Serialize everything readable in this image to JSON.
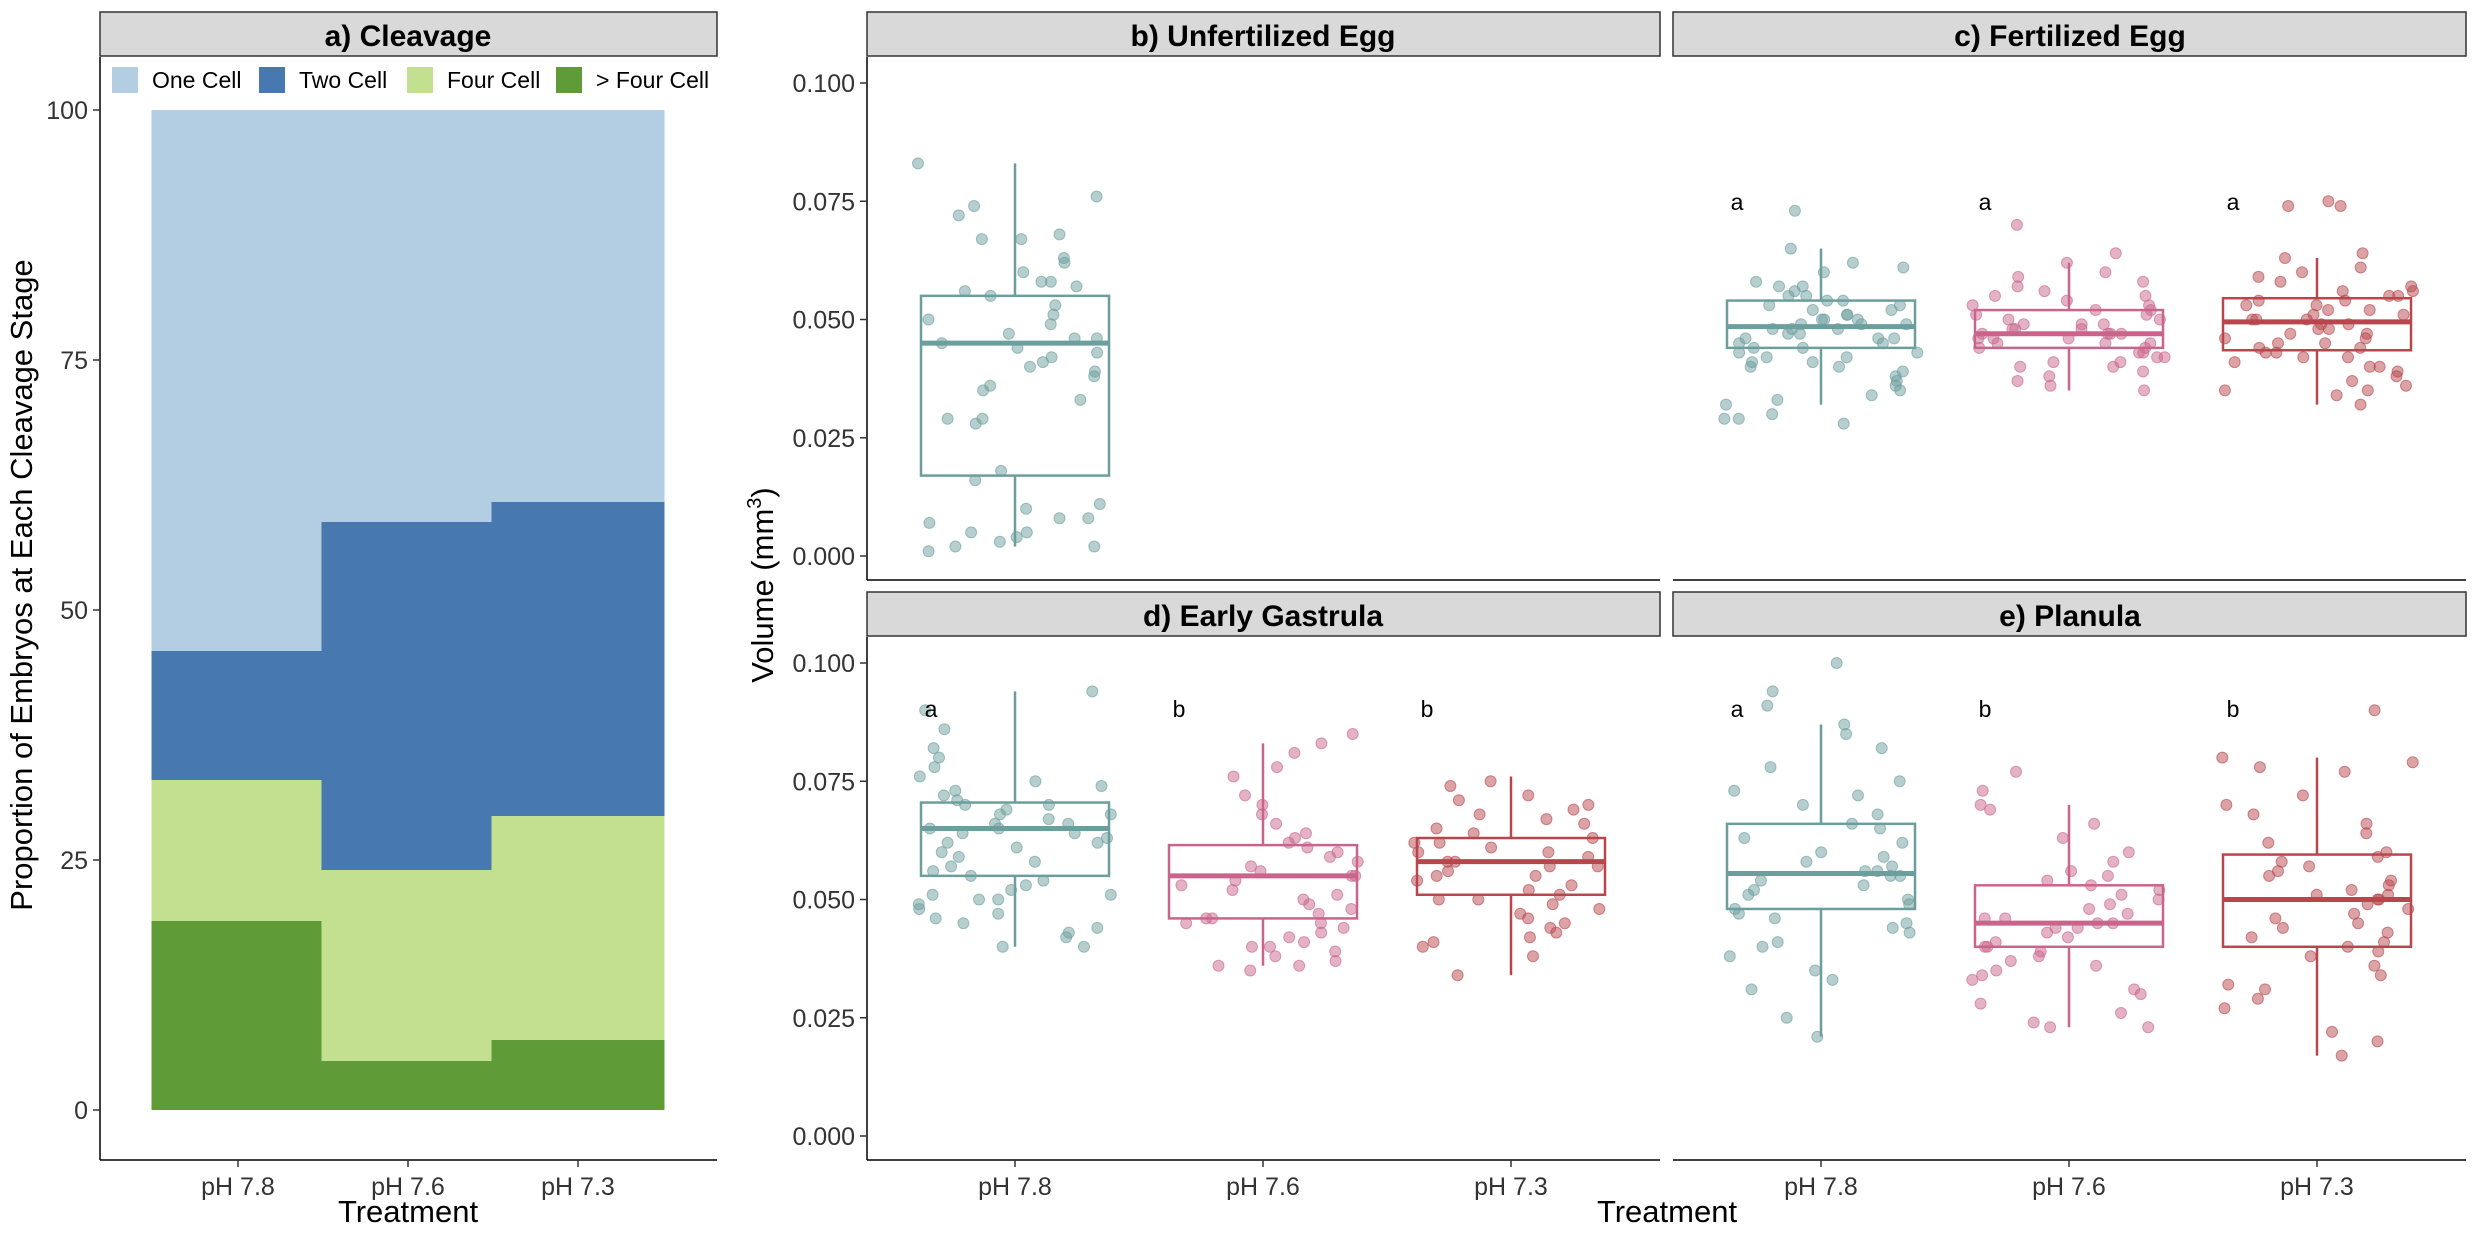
{
  "chart_data": [
    {
      "panel": "a",
      "type": "bar",
      "stacked": true,
      "title": "a) Cleavage",
      "xlabel": "Treatment",
      "ylabel": "Proportion of Embryos at Each Cleavage Stage",
      "categories": [
        "pH 7.8",
        "pH 7.6",
        "pH 7.3"
      ],
      "ylim": [
        0,
        100
      ],
      "yticks": [
        "0",
        "25",
        "50",
        "75",
        "100"
      ],
      "legend_position": "top",
      "series": [
        {
          "name": "One Cell",
          "color": "#b3cde3",
          "values": [
            54.1,
            41.2,
            39.2
          ]
        },
        {
          "name": "Two Cell",
          "color": "#4878b0",
          "values": [
            12.9,
            34.8,
            31.4
          ]
        },
        {
          "name": "Four Cell",
          "color": "#c2e08f",
          "values": [
            14.1,
            19.1,
            22.4
          ]
        },
        {
          "name": "> Four Cell",
          "color": "#5f9c37",
          "values": [
            18.9,
            4.9,
            7.0
          ]
        }
      ]
    },
    {
      "panel": "b",
      "type": "scatter",
      "subtype": "boxplot with jittered points",
      "title": "b) Unfertilized Egg",
      "categories": [
        "pH 7.8"
      ],
      "ylim": [
        0,
        0.1
      ],
      "boxes": [
        {
          "category": "pH 7.8",
          "color": "#6d9e9e",
          "q1": 0.017,
          "median": 0.045,
          "q3": 0.055,
          "whisker_low": 0.002,
          "whisker_high": 0.083
        }
      ],
      "points": [
        [
          0.083,
          0.076,
          0.074,
          0.072,
          0.068,
          0.067,
          0.067,
          0.063,
          0.062,
          0.06,
          0.058,
          0.058,
          0.057,
          0.056,
          0.055,
          0.053,
          0.051,
          0.05,
          0.049,
          0.047,
          0.046,
          0.046,
          0.045,
          0.044,
          0.043,
          0.042,
          0.041,
          0.04,
          0.039,
          0.038,
          0.036,
          0.035,
          0.033,
          0.029,
          0.029,
          0.028,
          0.018,
          0.016,
          0.011,
          0.01,
          0.008,
          0.008,
          0.007,
          0.005,
          0.005,
          0.004,
          0.003,
          0.002,
          0.002,
          0.001
        ]
      ],
      "significance": []
    },
    {
      "panel": "c",
      "type": "scatter",
      "subtype": "boxplot with jittered points",
      "title": "c) Fertilized Egg",
      "categories": [
        "pH 7.8",
        "pH 7.6",
        "pH 7.3"
      ],
      "ylim": [
        0,
        0.1
      ],
      "boxes": [
        {
          "category": "pH 7.8",
          "color": "#6d9e9e",
          "q1": 0.044,
          "median": 0.0485,
          "q3": 0.054,
          "whisker_low": 0.032,
          "whisker_high": 0.065
        },
        {
          "category": "pH 7.6",
          "color": "#c9658c",
          "q1": 0.044,
          "median": 0.047,
          "q3": 0.052,
          "whisker_low": 0.035,
          "whisker_high": 0.062
        },
        {
          "category": "pH 7.3",
          "color": "#b8474d",
          "q1": 0.0435,
          "median": 0.0495,
          "q3": 0.0545,
          "whisker_low": 0.032,
          "whisker_high": 0.063
        }
      ],
      "points": [
        [
          0.073,
          0.065,
          0.062,
          0.061,
          0.06,
          0.058,
          0.057,
          0.057,
          0.056,
          0.055,
          0.055,
          0.054,
          0.054,
          0.053,
          0.053,
          0.052,
          0.052,
          0.051,
          0.051,
          0.05,
          0.05,
          0.05,
          0.049,
          0.049,
          0.049,
          0.048,
          0.048,
          0.048,
          0.047,
          0.047,
          0.046,
          0.046,
          0.046,
          0.045,
          0.045,
          0.044,
          0.044,
          0.043,
          0.043,
          0.042,
          0.042,
          0.041,
          0.041,
          0.04,
          0.04,
          0.039,
          0.038,
          0.037,
          0.036,
          0.035,
          0.034,
          0.033,
          0.032,
          0.03,
          0.029,
          0.029,
          0.028
        ],
        [
          0.07,
          0.064,
          0.062,
          0.06,
          0.059,
          0.058,
          0.057,
          0.056,
          0.055,
          0.055,
          0.054,
          0.053,
          0.053,
          0.052,
          0.052,
          0.051,
          0.051,
          0.05,
          0.05,
          0.049,
          0.049,
          0.049,
          0.048,
          0.048,
          0.048,
          0.047,
          0.047,
          0.047,
          0.047,
          0.046,
          0.046,
          0.046,
          0.045,
          0.045,
          0.045,
          0.044,
          0.044,
          0.043,
          0.043,
          0.042,
          0.042,
          0.041,
          0.041,
          0.04,
          0.04,
          0.039,
          0.038,
          0.037,
          0.036,
          0.035
        ],
        [
          0.075,
          0.074,
          0.074,
          0.064,
          0.063,
          0.061,
          0.06,
          0.059,
          0.058,
          0.057,
          0.056,
          0.056,
          0.055,
          0.055,
          0.054,
          0.054,
          0.053,
          0.053,
          0.052,
          0.052,
          0.051,
          0.051,
          0.05,
          0.05,
          0.05,
          0.049,
          0.049,
          0.048,
          0.048,
          0.047,
          0.047,
          0.046,
          0.046,
          0.045,
          0.045,
          0.044,
          0.044,
          0.043,
          0.043,
          0.042,
          0.042,
          0.041,
          0.04,
          0.04,
          0.039,
          0.038,
          0.037,
          0.036,
          0.035,
          0.035,
          0.034,
          0.032
        ]
      ],
      "significance": [
        "a",
        "a",
        "a"
      ]
    },
    {
      "panel": "d",
      "type": "scatter",
      "subtype": "boxplot with jittered points",
      "title": "d) Early Gastrula",
      "categories": [
        "pH 7.8",
        "pH 7.6",
        "pH 7.3"
      ],
      "ylim": [
        0,
        0.1
      ],
      "boxes": [
        {
          "category": "pH 7.8",
          "color": "#6d9e9e",
          "q1": 0.055,
          "median": 0.065,
          "q3": 0.0705,
          "whisker_low": 0.04,
          "whisker_high": 0.094
        },
        {
          "category": "pH 7.6",
          "color": "#c9658c",
          "q1": 0.046,
          "median": 0.055,
          "q3": 0.0615,
          "whisker_low": 0.036,
          "whisker_high": 0.083
        },
        {
          "category": "pH 7.3",
          "color": "#b8474d",
          "q1": 0.051,
          "median": 0.058,
          "q3": 0.063,
          "whisker_low": 0.034,
          "whisker_high": 0.076
        }
      ],
      "points": [
        [
          0.094,
          0.09,
          0.086,
          0.082,
          0.08,
          0.078,
          0.076,
          0.075,
          0.074,
          0.073,
          0.072,
          0.071,
          0.07,
          0.07,
          0.069,
          0.068,
          0.068,
          0.067,
          0.066,
          0.066,
          0.065,
          0.065,
          0.064,
          0.064,
          0.063,
          0.062,
          0.062,
          0.061,
          0.06,
          0.059,
          0.058,
          0.057,
          0.056,
          0.055,
          0.054,
          0.053,
          0.052,
          0.051,
          0.051,
          0.05,
          0.05,
          0.049,
          0.048,
          0.047,
          0.046,
          0.045,
          0.044,
          0.043,
          0.042,
          0.04,
          0.04
        ],
        [
          0.085,
          0.083,
          0.081,
          0.078,
          0.076,
          0.072,
          0.07,
          0.068,
          0.066,
          0.064,
          0.063,
          0.062,
          0.061,
          0.06,
          0.059,
          0.058,
          0.057,
          0.056,
          0.055,
          0.055,
          0.054,
          0.053,
          0.052,
          0.051,
          0.05,
          0.049,
          0.048,
          0.047,
          0.046,
          0.046,
          0.045,
          0.045,
          0.044,
          0.043,
          0.042,
          0.041,
          0.04,
          0.04,
          0.039,
          0.038,
          0.037,
          0.036,
          0.036,
          0.035
        ],
        [
          0.075,
          0.074,
          0.072,
          0.071,
          0.07,
          0.069,
          0.068,
          0.067,
          0.066,
          0.065,
          0.064,
          0.063,
          0.062,
          0.062,
          0.061,
          0.06,
          0.06,
          0.059,
          0.058,
          0.058,
          0.057,
          0.057,
          0.056,
          0.055,
          0.055,
          0.054,
          0.053,
          0.052,
          0.051,
          0.05,
          0.05,
          0.049,
          0.048,
          0.047,
          0.046,
          0.045,
          0.044,
          0.043,
          0.042,
          0.041,
          0.04,
          0.038,
          0.034
        ]
      ],
      "significance": [
        "a",
        "b",
        "b"
      ]
    },
    {
      "panel": "e",
      "type": "scatter",
      "subtype": "boxplot with jittered points",
      "title": "e) Planula",
      "categories": [
        "pH 7.8",
        "pH 7.6",
        "pH 7.3"
      ],
      "ylim": [
        0,
        0.1
      ],
      "boxes": [
        {
          "category": "pH 7.8",
          "color": "#6d9e9e",
          "q1": 0.048,
          "median": 0.0555,
          "q3": 0.066,
          "whisker_low": 0.021,
          "whisker_high": 0.087
        },
        {
          "category": "pH 7.6",
          "color": "#c9658c",
          "q1": 0.04,
          "median": 0.045,
          "q3": 0.053,
          "whisker_low": 0.023,
          "whisker_high": 0.07
        },
        {
          "category": "pH 7.3",
          "color": "#b8474d",
          "q1": 0.04,
          "median": 0.05,
          "q3": 0.0595,
          "whisker_low": 0.017,
          "whisker_high": 0.08
        }
      ],
      "points": [
        [
          0.1,
          0.094,
          0.091,
          0.087,
          0.085,
          0.082,
          0.078,
          0.075,
          0.073,
          0.072,
          0.07,
          0.068,
          0.066,
          0.065,
          0.063,
          0.062,
          0.06,
          0.059,
          0.058,
          0.057,
          0.056,
          0.056,
          0.055,
          0.055,
          0.054,
          0.053,
          0.052,
          0.051,
          0.05,
          0.049,
          0.048,
          0.047,
          0.046,
          0.045,
          0.044,
          0.043,
          0.041,
          0.04,
          0.038,
          0.035,
          0.033,
          0.031,
          0.025,
          0.021
        ],
        [
          0.077,
          0.073,
          0.07,
          0.069,
          0.066,
          0.063,
          0.06,
          0.058,
          0.056,
          0.055,
          0.054,
          0.053,
          0.052,
          0.051,
          0.05,
          0.049,
          0.048,
          0.047,
          0.046,
          0.046,
          0.045,
          0.045,
          0.044,
          0.044,
          0.043,
          0.042,
          0.041,
          0.04,
          0.04,
          0.039,
          0.038,
          0.037,
          0.036,
          0.035,
          0.034,
          0.033,
          0.031,
          0.03,
          0.028,
          0.026,
          0.024,
          0.023,
          0.023
        ],
        [
          0.09,
          0.08,
          0.079,
          0.078,
          0.077,
          0.072,
          0.07,
          0.068,
          0.066,
          0.064,
          0.062,
          0.06,
          0.059,
          0.058,
          0.057,
          0.056,
          0.055,
          0.054,
          0.053,
          0.052,
          0.051,
          0.051,
          0.05,
          0.05,
          0.049,
          0.048,
          0.047,
          0.046,
          0.045,
          0.044,
          0.043,
          0.042,
          0.041,
          0.04,
          0.039,
          0.038,
          0.036,
          0.034,
          0.032,
          0.031,
          0.029,
          0.027,
          0.022,
          0.02,
          0.017
        ]
      ],
      "significance": [
        "a",
        "b",
        "b"
      ]
    }
  ],
  "shared_axes": {
    "volume_ylabel": "Volume (mm",
    "volume_ylabel_superscript": "3",
    "volume_ylabel_close": ")",
    "volume_yticks": [
      "0.000",
      "0.025",
      "0.050",
      "0.075",
      "0.100"
    ],
    "volume_xlabel": "Treatment"
  }
}
